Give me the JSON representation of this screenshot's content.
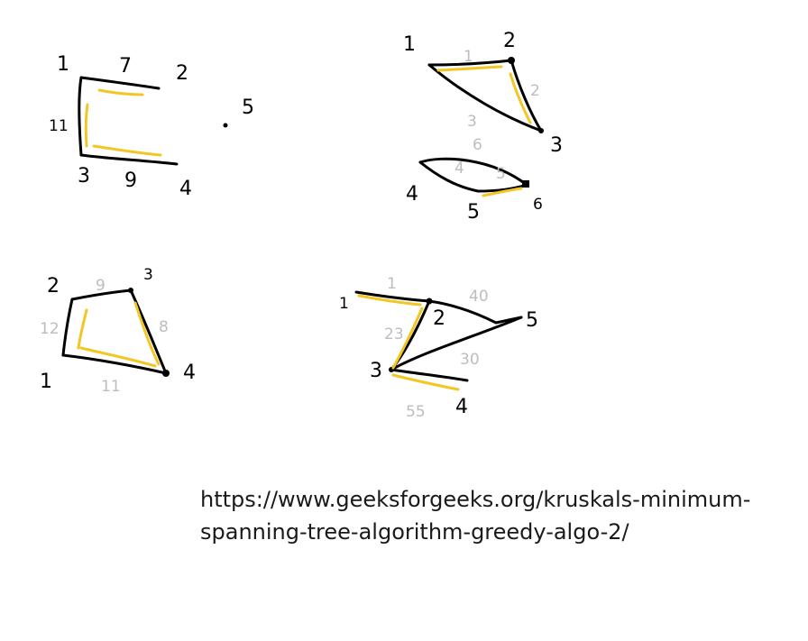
{
  "colors": {
    "edge": "#000000",
    "mst_highlight": "#f3c623",
    "weight_gray": "#bdbdbd"
  },
  "graph1": {
    "node_labels": [
      "1",
      "2",
      "3",
      "4",
      "5"
    ],
    "weights": [
      "7",
      "11",
      "9"
    ]
  },
  "graph2": {
    "node_labels": [
      "1",
      "2",
      "3",
      "4",
      "5",
      "6"
    ],
    "weights": [
      "1",
      "2",
      "3",
      "6",
      "4",
      "5"
    ]
  },
  "graph3": {
    "node_labels": [
      "2",
      "3",
      "1",
      "4"
    ],
    "weights": [
      "9",
      "12",
      "8",
      "11"
    ]
  },
  "graph4": {
    "node_labels": [
      "1",
      "2",
      "3",
      "4",
      "5"
    ],
    "weights": [
      "1",
      "40",
      "23",
      "30",
      "55"
    ]
  },
  "source_url": "https://www.geeksforgeeks.org/kruskals-minimum-spanning-tree-algorithm-greedy-algo-2/"
}
